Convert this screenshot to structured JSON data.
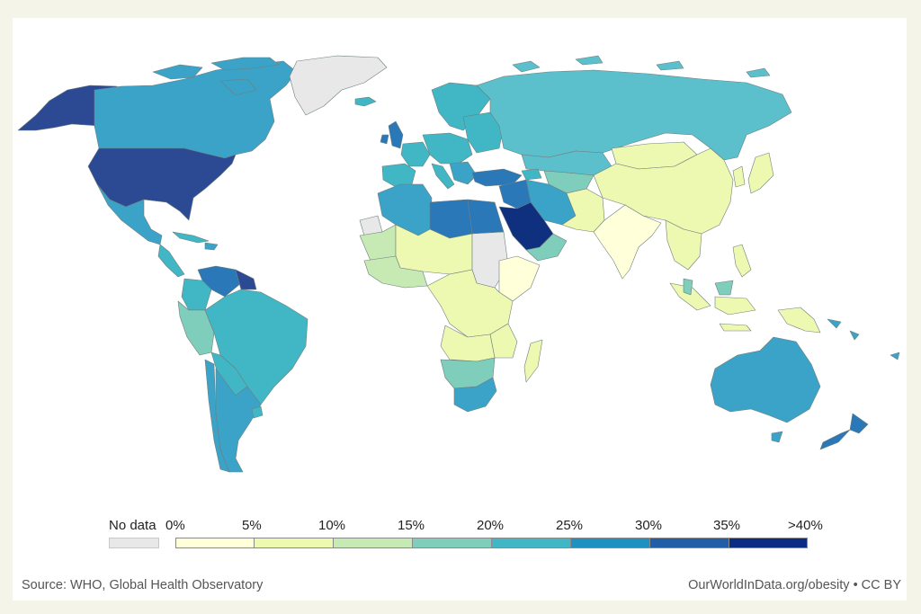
{
  "legend": {
    "no_data_label": "No data",
    "no_data_color": "#e8e8e8",
    "tick_labels": [
      "0%",
      "5%",
      "10%",
      "15%",
      "20%",
      "25%",
      "30%",
      "35%",
      ">40%"
    ],
    "bins": [
      {
        "range": "0-5",
        "color": "#ffffd9"
      },
      {
        "range": "5-10",
        "color": "#edf8b1"
      },
      {
        "range": "10-15",
        "color": "#c7e9b4"
      },
      {
        "range": "15-20",
        "color": "#7fcdbb"
      },
      {
        "range": "20-25",
        "color": "#41b6c4"
      },
      {
        "range": "25-30",
        "color": "#1d91c0"
      },
      {
        "range": "30-35",
        "color": "#225ea8"
      },
      {
        "range": "35-40",
        "color": "#0c2c84"
      }
    ]
  },
  "footer": {
    "source": "Source: WHO, Global Health Observatory",
    "credit": "OurWorldInData.org/obesity • CC BY"
  },
  "colors": {
    "background": "#f4f4e8",
    "panel": "#ffffff",
    "border": "#7a8a8a"
  }
}
